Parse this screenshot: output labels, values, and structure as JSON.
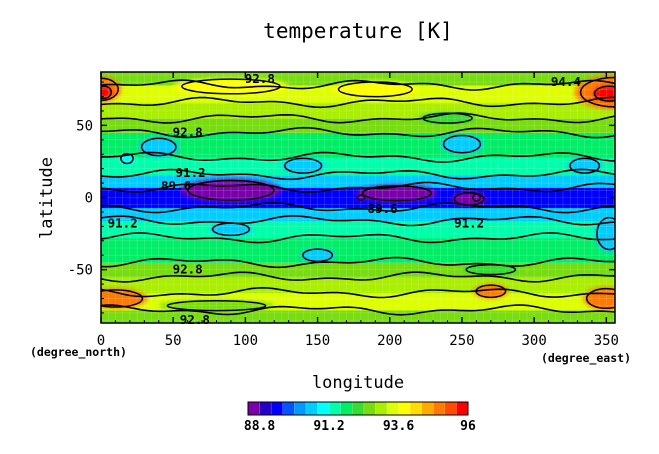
{
  "chart_data": {
    "type": "heatmap",
    "title": "temperature [K]",
    "xlabel": "longitude",
    "ylabel": "latitude",
    "x_unit": "(degree_east)",
    "y_unit": "(degree_north)",
    "xlim": [
      0,
      356
    ],
    "ylim": [
      -87,
      87
    ],
    "x_ticks": [
      0,
      50,
      100,
      150,
      200,
      250,
      300,
      350
    ],
    "y_ticks": [
      -50,
      0,
      50
    ],
    "x_tick_labels": [
      "0",
      "50",
      "100",
      "150",
      "200",
      "250",
      "300",
      "350"
    ],
    "y_tick_labels": [
      "-50",
      "0",
      "50"
    ],
    "grid": true,
    "colorbar": {
      "orientation": "horizontal",
      "min": 88.4,
      "max": 96.0,
      "step": 0.4,
      "tick_values": [
        88.8,
        91.2,
        93.6,
        96
      ],
      "tick_labels": [
        "88.8",
        "91.2",
        "93.6",
        "96"
      ],
      "colors": [
        "#7a00aa",
        "#2400c8",
        "#0000ff",
        "#0055ff",
        "#0099ff",
        "#00ccff",
        "#00ffff",
        "#00ffaa",
        "#00ee66",
        "#33dd33",
        "#77dd11",
        "#aaee00",
        "#ddff00",
        "#ffff00",
        "#ffdd00",
        "#ffaa00",
        "#ff7a00",
        "#ff4a00",
        "#ff0000"
      ]
    },
    "contour_labels": [
      {
        "text": "92.8",
        "lon": 110,
        "lat": 82
      },
      {
        "text": "94.4",
        "lon": 322,
        "lat": 80
      },
      {
        "text": "92.8",
        "lon": 60,
        "lat": 45
      },
      {
        "text": "91.2",
        "lon": 62,
        "lat": 17
      },
      {
        "text": "89.6",
        "lon": 52,
        "lat": 8
      },
      {
        "text": "89.6",
        "lon": 195,
        "lat": -8
      },
      {
        "text": "91.2",
        "lon": 15,
        "lat": -18
      },
      {
        "text": "91.2",
        "lon": 255,
        "lat": -18
      },
      {
        "text": "92.8",
        "lon": 60,
        "lat": -50
      },
      {
        "text": "92.8",
        "lon": 65,
        "lat": -85
      }
    ],
    "bands": [
      {
        "lat_from": -87,
        "lat_to": -78,
        "value": 92.4
      },
      {
        "lat_from": -78,
        "lat_to": -66,
        "value": 93.4
      },
      {
        "lat_from": -66,
        "lat_to": -55,
        "value": 93.2
      },
      {
        "lat_from": -55,
        "lat_to": -45,
        "value": 92.6
      },
      {
        "lat_from": -45,
        "lat_to": -28,
        "value": 91.9
      },
      {
        "lat_from": -28,
        "lat_to": -16,
        "value": 91.4
      },
      {
        "lat_from": -16,
        "lat_to": -7,
        "value": 90.6
      },
      {
        "lat_from": -7,
        "lat_to": 7,
        "value": 89.6
      },
      {
        "lat_from": 7,
        "lat_to": 16,
        "value": 90.6
      },
      {
        "lat_from": 16,
        "lat_to": 28,
        "value": 91.4
      },
      {
        "lat_from": 28,
        "lat_to": 45,
        "value": 91.9
      },
      {
        "lat_from": 45,
        "lat_to": 55,
        "value": 92.6
      },
      {
        "lat_from": 55,
        "lat_to": 66,
        "value": 93.2
      },
      {
        "lat_from": 66,
        "lat_to": 78,
        "value": 93.4
      },
      {
        "lat_from": 78,
        "lat_to": 87,
        "value": 92.4
      }
    ],
    "patches": [
      {
        "lon": 0,
        "lat": 75,
        "rlon": 14,
        "rlat": 9,
        "value": 95.0
      },
      {
        "lon": 2,
        "lat": 73,
        "rlon": 6,
        "rlat": 5,
        "value": 95.8
      },
      {
        "lon": 356,
        "lat": 73,
        "rlon": 28,
        "rlat": 12,
        "value": 95.2
      },
      {
        "lon": 352,
        "lat": 72,
        "rlon": 12,
        "rlat": 6,
        "value": 95.7
      },
      {
        "lon": 90,
        "lat": 77,
        "rlon": 40,
        "rlat": 6,
        "value": 93.9
      },
      {
        "lon": 190,
        "lat": 75,
        "rlon": 30,
        "rlat": 6,
        "value": 94.0
      },
      {
        "lon": 10,
        "lat": -70,
        "rlon": 22,
        "rlat": 7,
        "value": 95.0
      },
      {
        "lon": 350,
        "lat": -70,
        "rlon": 16,
        "rlat": 8,
        "value": 95.0
      },
      {
        "lon": 270,
        "lat": -65,
        "rlon": 12,
        "rlat": 5,
        "value": 95.0
      },
      {
        "lon": 80,
        "lat": -75,
        "rlon": 40,
        "rlat": 4,
        "value": 92.8
      },
      {
        "lon": 40,
        "lat": 35,
        "rlon": 14,
        "rlat": 7,
        "value": 90.8
      },
      {
        "lon": 18,
        "lat": 27,
        "rlon": 5,
        "rlat": 4,
        "value": 91.0
      },
      {
        "lon": 250,
        "lat": 37,
        "rlon": 15,
        "rlat": 7,
        "value": 90.8
      },
      {
        "lon": 140,
        "lat": 22,
        "rlon": 15,
        "rlat": 6,
        "value": 90.8
      },
      {
        "lon": 335,
        "lat": 22,
        "rlon": 12,
        "rlat": 6,
        "value": 90.8
      },
      {
        "lon": 90,
        "lat": -22,
        "rlon": 15,
        "rlat": 5,
        "value": 90.8
      },
      {
        "lon": 150,
        "lat": -40,
        "rlon": 12,
        "rlat": 5,
        "value": 90.8
      },
      {
        "lon": 352,
        "lat": -25,
        "rlon": 10,
        "rlat": 13,
        "value": 90.6
      },
      {
        "lon": 90,
        "lat": 5,
        "rlon": 35,
        "rlat": 8,
        "value": 88.7
      },
      {
        "lon": 205,
        "lat": 3,
        "rlon": 28,
        "rlat": 6,
        "value": 88.8
      },
      {
        "lon": 255,
        "lat": -1,
        "rlon": 12,
        "rlat": 5,
        "value": 88.5
      },
      {
        "lon": 260,
        "lat": 0,
        "rlon": 3,
        "rlat": 3,
        "value": 88.0
      },
      {
        "lon": 180,
        "lat": 0,
        "rlon": 3,
        "rlat": 2,
        "value": 88.2
      },
      {
        "lon": 240,
        "lat": 55,
        "rlon": 20,
        "rlat": 4,
        "value": 92.2
      },
      {
        "lon": 270,
        "lat": -50,
        "rlon": 20,
        "rlat": 4,
        "value": 92.2
      }
    ]
  }
}
